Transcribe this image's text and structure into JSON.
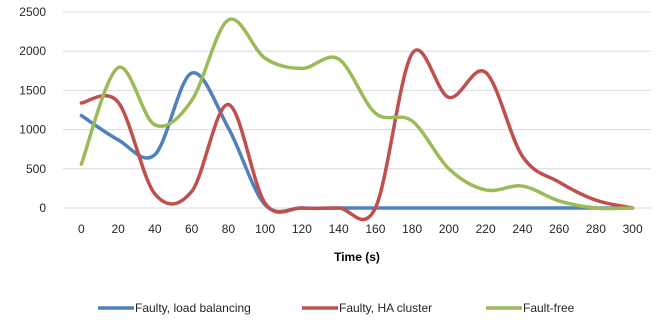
{
  "chart_data": {
    "type": "line",
    "title": "",
    "xlabel": "Time (s)",
    "ylabel": "",
    "x": [
      0,
      20,
      40,
      60,
      80,
      100,
      120,
      140,
      160,
      180,
      200,
      220,
      240,
      260,
      280,
      300
    ],
    "xlim": [
      0,
      300
    ],
    "ylim": [
      0,
      2500
    ],
    "yticks": [
      0,
      500,
      1000,
      1500,
      2000,
      2500
    ],
    "grid": true,
    "smooth": true,
    "legend_position": "bottom",
    "series": [
      {
        "name": "Faulty, load balancing",
        "color": "#4f81bd",
        "values": [
          1180,
          870,
          680,
          1720,
          1020,
          40,
          0,
          0,
          0,
          0,
          0,
          0,
          0,
          0,
          0,
          0
        ]
      },
      {
        "name": "Faulty, HA cluster",
        "color": "#c0504d",
        "values": [
          1340,
          1350,
          180,
          210,
          1320,
          60,
          0,
          0,
          0,
          1970,
          1410,
          1730,
          660,
          330,
          100,
          0
        ]
      },
      {
        "name": "Fault-free",
        "color": "#9bbb59",
        "values": [
          560,
          1790,
          1060,
          1370,
          2400,
          1910,
          1780,
          1900,
          1210,
          1110,
          500,
          230,
          280,
          90,
          0,
          0
        ]
      }
    ]
  }
}
